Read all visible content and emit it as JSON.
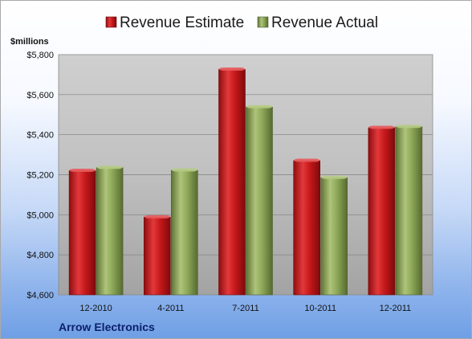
{
  "chart_data": {
    "type": "bar",
    "title": "",
    "unit_label": "$millions",
    "company": "Arrow Electronics",
    "categories": [
      "12-2010",
      "4-2011",
      "7-2011",
      "10-2011",
      "12-2011"
    ],
    "series": [
      {
        "name": "Revenue Estimate",
        "color": "#c8191b",
        "values": [
          5220,
          4988,
          5726,
          5270,
          5435
        ]
      },
      {
        "name": "Revenue Actual",
        "color": "#8fa95a",
        "values": [
          5235,
          5222,
          5538,
          5185,
          5440
        ]
      }
    ],
    "ylim": [
      4600,
      5800
    ],
    "yticks": [
      "$4,600",
      "$4,800",
      "$5,000",
      "$5,200",
      "$5,400",
      "$5,600",
      "$5,800"
    ],
    "ytick_values": [
      4600,
      4800,
      5000,
      5200,
      5400,
      5600,
      5800
    ],
    "grid": true,
    "legend_position": "top"
  }
}
